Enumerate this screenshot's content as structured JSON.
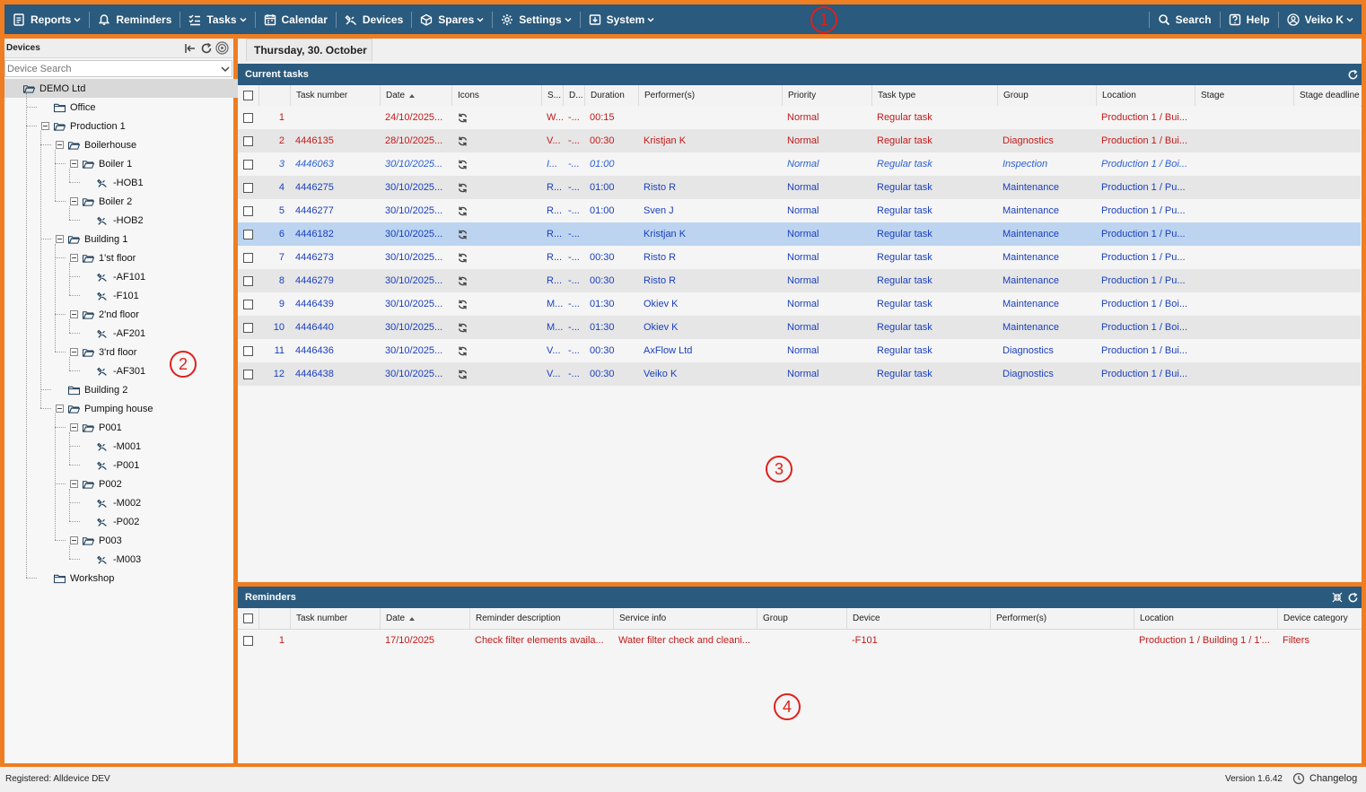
{
  "nav": {
    "items": [
      {
        "label": "Reports",
        "icon": "reports-icon",
        "has_menu": true
      },
      {
        "label": "Reminders",
        "icon": "bell-icon",
        "has_menu": false
      },
      {
        "label": "Tasks",
        "icon": "tasks-icon",
        "has_menu": true
      },
      {
        "label": "Calendar",
        "icon": "calendar-icon",
        "has_menu": false
      },
      {
        "label": "Devices",
        "icon": "devices-icon",
        "has_menu": false
      },
      {
        "label": "Spares",
        "icon": "box-icon",
        "has_menu": true
      },
      {
        "label": "Settings",
        "icon": "gear-icon",
        "has_menu": true
      },
      {
        "label": "System",
        "icon": "system-icon",
        "has_menu": true
      }
    ],
    "search_label": "Search",
    "help_label": "Help",
    "user_label": "Veiko K"
  },
  "markers": {
    "m1": "1",
    "m2": "2",
    "m3": "3",
    "m4": "4"
  },
  "devices": {
    "title": "Devices",
    "search_placeholder": "Device Search",
    "tree": [
      {
        "label": "DEMO Ltd",
        "level": 0,
        "type": "folder-open",
        "toggle": false,
        "selected": true
      },
      {
        "label": "Office",
        "level": 1,
        "type": "folder",
        "toggle": false
      },
      {
        "label": "Production 1",
        "level": 1,
        "type": "folder-open",
        "toggle": true
      },
      {
        "label": "Boilerhouse",
        "level": 2,
        "type": "folder-open",
        "toggle": true
      },
      {
        "label": "Boiler 1",
        "level": 3,
        "type": "folder-open",
        "toggle": true
      },
      {
        "label": "-HOB1",
        "level": 4,
        "type": "device"
      },
      {
        "label": "Boiler 2",
        "level": 3,
        "type": "folder-open",
        "toggle": true
      },
      {
        "label": "-HOB2",
        "level": 4,
        "type": "device"
      },
      {
        "label": "Building 1",
        "level": 2,
        "type": "folder-open",
        "toggle": true
      },
      {
        "label": "1'st floor",
        "level": 3,
        "type": "folder-open",
        "toggle": true
      },
      {
        "label": "-AF101",
        "level": 4,
        "type": "device"
      },
      {
        "label": "-F101",
        "level": 4,
        "type": "device"
      },
      {
        "label": "2'nd floor",
        "level": 3,
        "type": "folder-open",
        "toggle": true
      },
      {
        "label": "-AF201",
        "level": 4,
        "type": "device"
      },
      {
        "label": "3'rd floor",
        "level": 3,
        "type": "folder-open",
        "toggle": true
      },
      {
        "label": "-AF301",
        "level": 4,
        "type": "device"
      },
      {
        "label": "Building 2",
        "level": 2,
        "type": "folder",
        "toggle": false
      },
      {
        "label": "Pumping house",
        "level": 2,
        "type": "folder-open",
        "toggle": true
      },
      {
        "label": "P001",
        "level": 3,
        "type": "folder-open",
        "toggle": true
      },
      {
        "label": "-M001",
        "level": 4,
        "type": "device"
      },
      {
        "label": "-P001",
        "level": 4,
        "type": "device"
      },
      {
        "label": "P002",
        "level": 3,
        "type": "folder-open",
        "toggle": true
      },
      {
        "label": "-M002",
        "level": 4,
        "type": "device"
      },
      {
        "label": "-P002",
        "level": 4,
        "type": "device"
      },
      {
        "label": "P003",
        "level": 3,
        "type": "folder-open",
        "toggle": true
      },
      {
        "label": "-M003",
        "level": 4,
        "type": "device"
      },
      {
        "label": "Workshop",
        "level": 1,
        "type": "folder",
        "toggle": false
      }
    ]
  },
  "date_tab": "Thursday, 30. October",
  "tasks": {
    "title": "Current tasks",
    "columns": [
      "Task number",
      "Date",
      "Icons",
      "S...",
      "D...",
      "Duration",
      "Performer(s)",
      "Priority",
      "Task type",
      "Group",
      "Location",
      "Stage",
      "Stage deadline"
    ],
    "rows": [
      {
        "n": "1",
        "task": "",
        "date": "24/10/2025...",
        "s": "W...",
        "d": "-...",
        "dur": "00:15",
        "perf": "",
        "prio": "Normal",
        "type": "Regular task",
        "group": "",
        "loc": "Production 1 / Bui...",
        "style": "red"
      },
      {
        "n": "2",
        "task": "4446135",
        "date": "28/10/2025...",
        "s": "V...",
        "d": "-...",
        "dur": "00:30",
        "perf": "Kristjan K",
        "prio": "Normal",
        "type": "Regular task",
        "group": "Diagnostics",
        "loc": "Production 1 / Bui...",
        "style": "red"
      },
      {
        "n": "3",
        "task": "4446063",
        "date": "30/10/2025...",
        "s": "I...",
        "d": "-...",
        "dur": "01:00",
        "perf": "",
        "prio": "Normal",
        "type": "Regular task",
        "group": "Inspection",
        "loc": "Production 1 / Boi...",
        "style": "italic"
      },
      {
        "n": "4",
        "task": "4446275",
        "date": "30/10/2025...",
        "s": "R...",
        "d": "-...",
        "dur": "01:00",
        "perf": "Risto R",
        "prio": "Normal",
        "type": "Regular task",
        "group": "Maintenance",
        "loc": "Production 1 / Pu...",
        "style": "blue"
      },
      {
        "n": "5",
        "task": "4446277",
        "date": "30/10/2025...",
        "s": "R...",
        "d": "-...",
        "dur": "01:00",
        "perf": "Sven J",
        "prio": "Normal",
        "type": "Regular task",
        "group": "Maintenance",
        "loc": "Production 1 / Pu...",
        "style": "blue"
      },
      {
        "n": "6",
        "task": "4446182",
        "date": "30/10/2025...",
        "s": "R...",
        "d": "-...",
        "dur": "",
        "perf": "Kristjan K",
        "prio": "Normal",
        "type": "Regular task",
        "group": "Maintenance",
        "loc": "Production 1 / Pu...",
        "style": "blue",
        "selected": true
      },
      {
        "n": "7",
        "task": "4446273",
        "date": "30/10/2025...",
        "s": "R...",
        "d": "-...",
        "dur": "00:30",
        "perf": "Risto R",
        "prio": "Normal",
        "type": "Regular task",
        "group": "Maintenance",
        "loc": "Production 1 / Pu...",
        "style": "blue"
      },
      {
        "n": "8",
        "task": "4446279",
        "date": "30/10/2025...",
        "s": "R...",
        "d": "-...",
        "dur": "00:30",
        "perf": "Risto R",
        "prio": "Normal",
        "type": "Regular task",
        "group": "Maintenance",
        "loc": "Production 1 / Pu...",
        "style": "blue"
      },
      {
        "n": "9",
        "task": "4446439",
        "date": "30/10/2025...",
        "s": "M...",
        "d": "-...",
        "dur": "01:30",
        "perf": "Okiev K",
        "prio": "Normal",
        "type": "Regular task",
        "group": "Maintenance",
        "loc": "Production 1 / Boi...",
        "style": "blue"
      },
      {
        "n": "10",
        "task": "4446440",
        "date": "30/10/2025...",
        "s": "M...",
        "d": "-...",
        "dur": "01:30",
        "perf": "Okiev K",
        "prio": "Normal",
        "type": "Regular task",
        "group": "Maintenance",
        "loc": "Production 1 / Boi...",
        "style": "blue"
      },
      {
        "n": "11",
        "task": "4446436",
        "date": "30/10/2025...",
        "s": "V...",
        "d": "-...",
        "dur": "00:30",
        "perf": "AxFlow Ltd",
        "prio": "Normal",
        "type": "Regular task",
        "group": "Diagnostics",
        "loc": "Production 1 / Bui...",
        "style": "blue"
      },
      {
        "n": "12",
        "task": "4446438",
        "date": "30/10/2025...",
        "s": "V...",
        "d": "-...",
        "dur": "00:30",
        "perf": "Veiko K",
        "prio": "Normal",
        "type": "Regular task",
        "group": "Diagnostics",
        "loc": "Production 1 / Bui...",
        "style": "blue"
      }
    ]
  },
  "reminders": {
    "title": "Reminders",
    "columns": [
      "Task number",
      "Date",
      "Reminder description",
      "Service info",
      "Group",
      "Device",
      "Performer(s)",
      "Location",
      "Device category"
    ],
    "rows": [
      {
        "n": "1",
        "task": "",
        "date": "17/10/2025",
        "desc": "Check filter elements availa...",
        "service": "Water filter check and cleani...",
        "group": "",
        "device": "-F101",
        "perf": "",
        "loc": "Production 1 / Building 1 / 1'...",
        "cat": "Filters"
      }
    ]
  },
  "status": {
    "registered": "Registered: Alldevice DEV",
    "version": "Version 1.6.42",
    "changelog": "Changelog"
  },
  "colors": {
    "accent": "#2a5a7d",
    "frame": "#ef7d22",
    "marker": "#e0201b",
    "red_text": "#c31a1a",
    "blue_text": "#1a3fbf",
    "selected_row": "#bcd4f0"
  }
}
